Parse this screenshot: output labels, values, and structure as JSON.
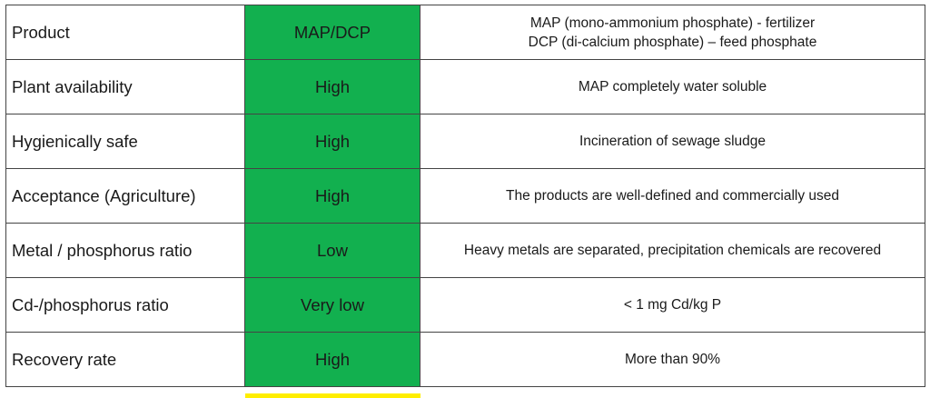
{
  "colors": {
    "rating_fill": "#12b04f",
    "grid_line": "#444444",
    "bottom_strip": "#ffee00"
  },
  "rows": [
    {
      "label": "Product",
      "rating": "MAP/DCP",
      "desc_line1": "MAP (mono-ammonium phosphate) - fertilizer",
      "desc_line2": "DCP (di-calcium phosphate) – feed phosphate"
    },
    {
      "label": "Plant availability",
      "rating": "High",
      "desc_line1": "MAP completely water soluble"
    },
    {
      "label": "Hygienically safe",
      "rating": "High",
      "desc_line1": "Incineration of sewage sludge"
    },
    {
      "label": "Acceptance (Agriculture)",
      "rating": "High",
      "desc_line1": "The products are well-defined and commercially used"
    },
    {
      "label": "Metal / phosphorus ratio",
      "rating": "Low",
      "desc_line1": "Heavy metals are separated, precipitation chemicals are recovered"
    },
    {
      "label": "Cd-/phosphorus ratio",
      "rating": "Very low",
      "desc_line1": "< 1 mg Cd/kg P"
    },
    {
      "label": "Recovery rate",
      "rating": "High",
      "desc_line1": "More than 90%"
    }
  ]
}
